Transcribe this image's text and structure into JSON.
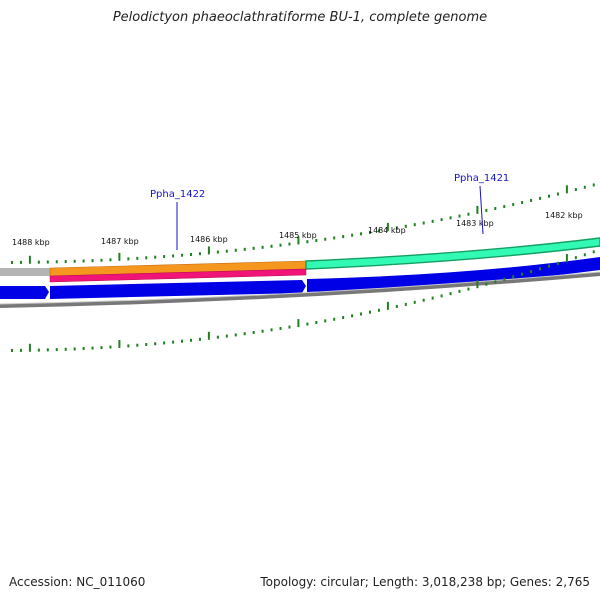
{
  "title": "Pelodictyon phaeoclathratiforme BU-1, complete genome",
  "footer": {
    "accession": "Accession: NC_011060",
    "summary": "Topology: circular; Length: 3,018,238 bp; Genes: 2,765"
  },
  "scale_labels": [
    "1488 kbp",
    "1487 kbp",
    "1486 kbp",
    "1485 kbp",
    "1484 kbp",
    "1483 kbp",
    "1482 kbp"
  ],
  "gene_labels": [
    "Ppha_1422",
    "Ppha_1421"
  ],
  "colors": {
    "track_gray": "#b4b4b4",
    "orange": "#f5961e",
    "magenta": "#f01478",
    "teal_outline": "#14a064",
    "teal_fill": "#32fab4",
    "blue": "#0000e6",
    "backbone": "#787878",
    "tick": "#1e821e",
    "label_line": "#1414c8"
  }
}
